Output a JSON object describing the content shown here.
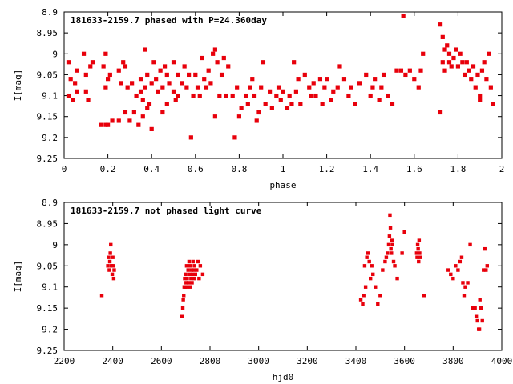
{
  "colors": {
    "points": "#e8000b",
    "axes": "#000000",
    "background": "#ffffff"
  },
  "chart_data": [
    {
      "type": "scatter",
      "title": "181633-2159.7 phased with P=24.360day",
      "xlabel": "phase",
      "ylabel": "I[mag]",
      "xlim": [
        0,
        2
      ],
      "ylim": [
        9.25,
        8.9
      ],
      "y_inverted": true,
      "grid": false,
      "xticks": [
        "0",
        "0.2",
        "0.4",
        "0.6",
        "0.8",
        "1",
        "1.2",
        "1.4",
        "1.6",
        "1.8",
        "2"
      ],
      "yticks": [
        "8.9",
        "8.95",
        "9",
        "9.05",
        "9.1",
        "9.15",
        "9.2",
        "9.25"
      ],
      "series": [
        {
          "x": [
            0.02,
            0.02,
            0.03,
            0.04,
            0.05,
            0.06,
            0.06,
            0.09,
            0.1,
            0.1,
            0.11,
            0.12,
            0.13,
            0.17,
            0.18,
            0.19,
            0.19,
            0.19,
            0.2,
            0.2,
            0.21,
            0.22,
            0.25,
            0.25,
            0.26,
            0.27,
            0.28,
            0.28,
            0.29,
            0.3,
            0.31,
            0.32,
            0.33,
            0.34,
            0.35,
            0.35,
            0.36,
            0.36,
            0.37,
            0.37,
            0.38,
            0.38,
            0.39,
            0.4,
            0.4,
            0.41,
            0.42,
            0.43,
            0.44,
            0.45,
            0.45,
            0.46,
            0.47,
            0.47,
            0.48,
            0.5,
            0.5,
            0.51,
            0.52,
            0.52,
            0.54,
            0.55,
            0.56,
            0.57,
            0.58,
            0.59,
            0.6,
            0.61,
            0.62,
            0.63,
            0.64,
            0.65,
            0.66,
            0.67,
            0.68,
            0.69,
            0.69,
            0.7,
            0.71,
            0.72,
            0.73,
            0.74,
            0.75,
            0.77,
            0.78,
            0.79,
            0.8,
            0.81,
            0.83,
            0.84,
            0.85,
            0.86,
            0.87,
            0.88,
            0.89,
            0.9,
            0.91,
            0.92,
            0.94,
            0.95,
            0.97,
            0.98,
            0.99,
            1.0,
            1.02,
            1.03,
            1.04,
            1.05,
            1.06,
            1.07,
            1.08,
            1.1,
            1.12,
            1.13,
            1.14,
            1.15,
            1.17,
            1.18,
            1.19,
            1.2,
            1.22,
            1.23,
            1.25,
            1.26,
            1.28,
            1.3,
            1.31,
            1.33,
            1.35,
            1.38,
            1.4,
            1.41,
            1.42,
            1.44,
            1.45,
            1.46,
            1.48,
            1.5,
            1.52,
            1.54,
            1.55,
            1.56,
            1.58,
            1.6,
            1.62,
            1.63,
            1.64,
            1.72,
            1.72,
            1.73,
            1.73,
            1.74,
            1.74,
            1.75,
            1.76,
            1.76,
            1.77,
            1.78,
            1.79,
            1.8,
            1.81,
            1.82,
            1.83,
            1.84,
            1.85,
            1.86,
            1.87,
            1.88,
            1.89,
            1.9,
            1.9,
            1.91,
            1.92,
            1.93,
            1.94,
            1.95,
            1.96
          ],
          "y": [
            9.02,
            9.1,
            9.06,
            9.11,
            9.07,
            9.04,
            9.09,
            9.0,
            9.05,
            9.09,
            9.11,
            9.03,
            9.02,
            9.17,
            9.03,
            9.0,
            9.08,
            9.17,
            9.06,
            9.17,
            9.05,
            9.16,
            9.04,
            9.16,
            9.07,
            9.02,
            9.14,
            9.03,
            9.08,
            9.16,
            9.07,
            9.14,
            9.1,
            9.17,
            9.06,
            9.09,
            9.15,
            9.11,
            9.08,
            8.99,
            9.05,
            9.13,
            9.12,
            9.07,
            9.18,
            9.02,
            9.06,
            9.09,
            9.04,
            9.14,
            9.08,
            9.03,
            9.12,
            9.05,
            9.07,
            9.09,
            9.02,
            9.11,
            9.05,
            9.1,
            9.07,
            9.03,
            9.08,
            9.05,
            9.2,
            9.1,
            9.05,
            9.08,
            9.1,
            9.01,
            9.06,
            9.08,
            9.04,
            9.07,
            9.0,
            8.99,
            9.15,
            9.02,
            9.1,
            9.05,
            9.01,
            9.1,
            9.03,
            9.1,
            9.2,
            9.08,
            9.15,
            9.13,
            9.1,
            9.12,
            9.08,
            9.06,
            9.1,
            9.16,
            9.14,
            9.08,
            9.02,
            9.12,
            9.09,
            9.13,
            9.1,
            9.08,
            9.11,
            9.09,
            9.13,
            9.1,
            9.12,
            9.02,
            9.09,
            9.06,
            9.12,
            9.05,
            9.08,
            9.1,
            9.07,
            9.1,
            9.06,
            9.12,
            9.08,
            9.06,
            9.11,
            9.09,
            9.08,
            9.03,
            9.06,
            9.1,
            9.08,
            9.12,
            9.07,
            9.05,
            9.1,
            9.08,
            9.06,
            9.11,
            9.08,
            9.05,
            9.1,
            9.12,
            9.04,
            9.04,
            8.91,
            9.05,
            9.04,
            9.06,
            9.08,
            9.04,
            9.0,
            9.14,
            8.93,
            8.96,
            9.02,
            8.99,
            9.04,
            8.98,
            9.0,
            9.02,
            9.03,
            9.01,
            8.99,
            9.03,
            9.0,
            9.02,
            9.05,
            9.02,
            9.04,
            9.06,
            9.03,
            9.08,
            9.05,
            9.1,
            9.11,
            9.04,
            9.02,
            9.06,
            9.0,
            9.08,
            9.12
          ]
        }
      ]
    },
    {
      "type": "scatter",
      "title": "181633-2159.7 not phased light curve",
      "xlabel": "hjd0",
      "ylabel": "I[mag]",
      "xlim": [
        2200,
        4000
      ],
      "ylim": [
        9.25,
        8.9
      ],
      "y_inverted": true,
      "grid": false,
      "xticks": [
        "2200",
        "2400",
        "2600",
        "2800",
        "3000",
        "3200",
        "3400",
        "3600",
        "3800",
        "4000"
      ],
      "yticks": [
        "8.9",
        "8.95",
        "9",
        "9.05",
        "9.1",
        "9.15",
        "9.2",
        "9.25"
      ],
      "series": [
        {
          "x": [
            2355,
            2380,
            2383,
            2386,
            2388,
            2390,
            2392,
            2395,
            2398,
            2400,
            2402,
            2404,
            2406,
            2685,
            2688,
            2690,
            2692,
            2694,
            2696,
            2698,
            2700,
            2702,
            2704,
            2706,
            2708,
            2710,
            2712,
            2714,
            2716,
            2718,
            2720,
            2722,
            2724,
            2726,
            2728,
            2730,
            2732,
            2734,
            2736,
            2740,
            2745,
            2750,
            2755,
            2760,
            2770,
            3420,
            3428,
            3432,
            3436,
            3440,
            3445,
            3450,
            3455,
            3460,
            3465,
            3470,
            3480,
            3490,
            3500,
            3510,
            3520,
            3525,
            3530,
            3535,
            3538,
            3540,
            3542,
            3544,
            3546,
            3548,
            3550,
            3555,
            3560,
            3570,
            3590,
            3600,
            3650,
            3652,
            3654,
            3656,
            3658,
            3660,
            3662,
            3664,
            3680,
            3780,
            3790,
            3800,
            3810,
            3820,
            3828,
            3835,
            3840,
            3845,
            3850,
            3860,
            3870,
            3880,
            3890,
            3895,
            3900,
            3905,
            3908,
            3910,
            3915,
            3920,
            3925,
            3930,
            3935,
            3940
          ],
          "y": [
            9.12,
            9.05,
            9.03,
            9.06,
            9.04,
            9.02,
            9.0,
            9.05,
            9.07,
            9.03,
            9.05,
            9.08,
            9.06,
            9.17,
            9.15,
            9.13,
            9.12,
            9.1,
            9.08,
            9.1,
            9.07,
            9.09,
            9.05,
            9.08,
            9.1,
            9.06,
            9.09,
            9.04,
            9.07,
            9.05,
            9.1,
            9.08,
            9.06,
            9.09,
            9.07,
            9.04,
            9.06,
            9.08,
            9.05,
            9.07,
            9.06,
            9.04,
            9.08,
            9.05,
            9.07,
            9.13,
            9.14,
            9.12,
            9.05,
            9.1,
            9.03,
            9.02,
            9.04,
            9.08,
            9.05,
            9.07,
            9.1,
            9.14,
            9.12,
            9.06,
            9.04,
            9.03,
            9.02,
            9.0,
            8.98,
            8.93,
            8.96,
            9.01,
            9.02,
            8.99,
            9.0,
            9.04,
            9.05,
            9.08,
            9.02,
            8.97,
            9.02,
            9.03,
            9.0,
            9.01,
            9.04,
            8.99,
            9.02,
            9.03,
            9.12,
            9.06,
            9.07,
            9.08,
            9.05,
            9.06,
            9.04,
            9.03,
            9.09,
            9.12,
            9.1,
            9.09,
            9.0,
            9.15,
            9.15,
            9.17,
            9.18,
            9.2,
            9.2,
            9.13,
            9.15,
            9.18,
            9.06,
            9.01,
            9.06,
            9.05
          ]
        }
      ]
    }
  ]
}
